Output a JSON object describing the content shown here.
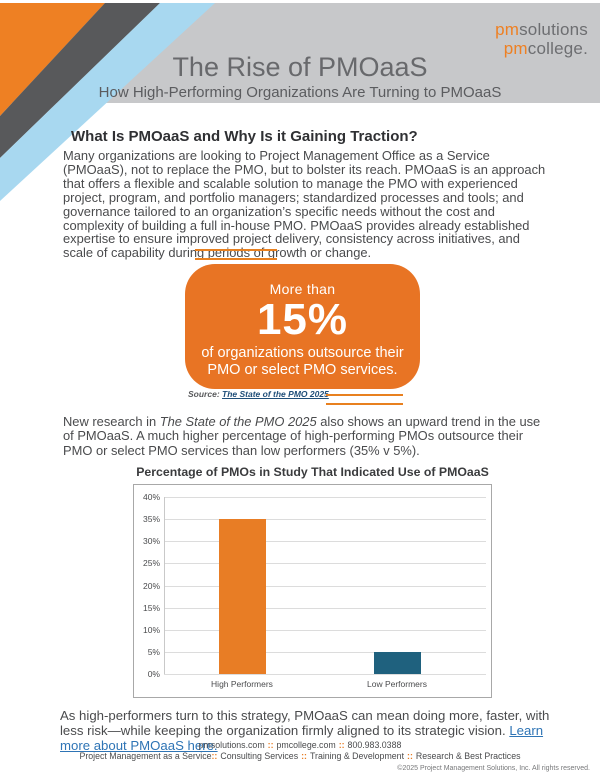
{
  "colors": {
    "accent_orange": "#E87424",
    "stripe_orange": "#EE8023",
    "stripe_gray": "#58595B",
    "stripe_blue": "#A8D8F0",
    "banner_gray": "#C7C8CA",
    "bar_teal": "#1F617E",
    "link_blue": "#2E74B5",
    "source_link_navy": "#1F4E79"
  },
  "header": {
    "logo": {
      "pm1": "pm",
      "rest1": "solutions",
      "pm2": "pm",
      "rest2": "college."
    },
    "title": "The Rise of PMOaaS",
    "subtitle": "How High-Performing Organizations Are Turning to PMOaaS"
  },
  "intro": {
    "heading": "What Is PMOaaS and Why Is it Gaining Traction?",
    "body": "Many organizations are looking to Project Management Office as a Service (PMOaaS), not to replace the PMO, but to bolster its reach. PMOaaS is an approach that offers a flexible and scalable solution to manage the PMO with experienced project, program, and portfolio managers; standardized processes and tools; and governance tailored to an organization’s specific needs without the cost and complexity of building a full in-house PMO. PMOaaS provides already established expertise to ensure improved project delivery, consistency across initiatives, and scale of capability during periods of growth or change."
  },
  "callout": {
    "line1": "More than",
    "stat": "15%",
    "line2": "of organizations outsource their PMO or select PMO services.",
    "source_label": "Source:",
    "source_link": "The State of the PMO 2025"
  },
  "research": {
    "before_italic": "New research in ",
    "italic": "The State of the PMO 2025",
    "after_italic": " also shows an upward trend in the use of PMOaaS. A much higher percentage of high-performing PMOs outsource their PMO or select PMO services than low performers (35% v 5%)."
  },
  "chart_data": {
    "type": "bar",
    "title": "Percentage of PMOs in Study That Indicated Use of PMOaaS",
    "categories": [
      "High Performers",
      "Low Performers"
    ],
    "values": [
      35,
      5
    ],
    "bar_colors": [
      "#E87D25",
      "#1F617E"
    ],
    "xlabel": "",
    "ylabel": "",
    "ylim": [
      0,
      40
    ],
    "ytick_step": 5,
    "ytick_labels": [
      "0%",
      "5%",
      "10%",
      "15%",
      "20%",
      "25%",
      "30%",
      "35%",
      "40%"
    ],
    "grid": true,
    "legend": false
  },
  "closing": {
    "text": "As high-performers turn to this strategy, PMOaaS can mean doing more, faster, with less risk—while keeping the organization firmly aligned to its strategic vision. ",
    "link": "Learn more about PMOaaS here."
  },
  "footer": {
    "contact": {
      "site1": "pmsolutions.com",
      "sep1": "::",
      "site2": "pmcollege.com",
      "sep2": "::",
      "phone": "800.983.0388"
    },
    "services": {
      "s1": "Project Management as a Service",
      "sep1": "::",
      "s2": "Consulting Services",
      "sep2": "::",
      "s3": "Training & Development",
      "sep3": "::",
      "s4": "Research & Best Practices"
    },
    "copyright": "©2025 Project Management Solutions, Inc. All rights reserved."
  }
}
